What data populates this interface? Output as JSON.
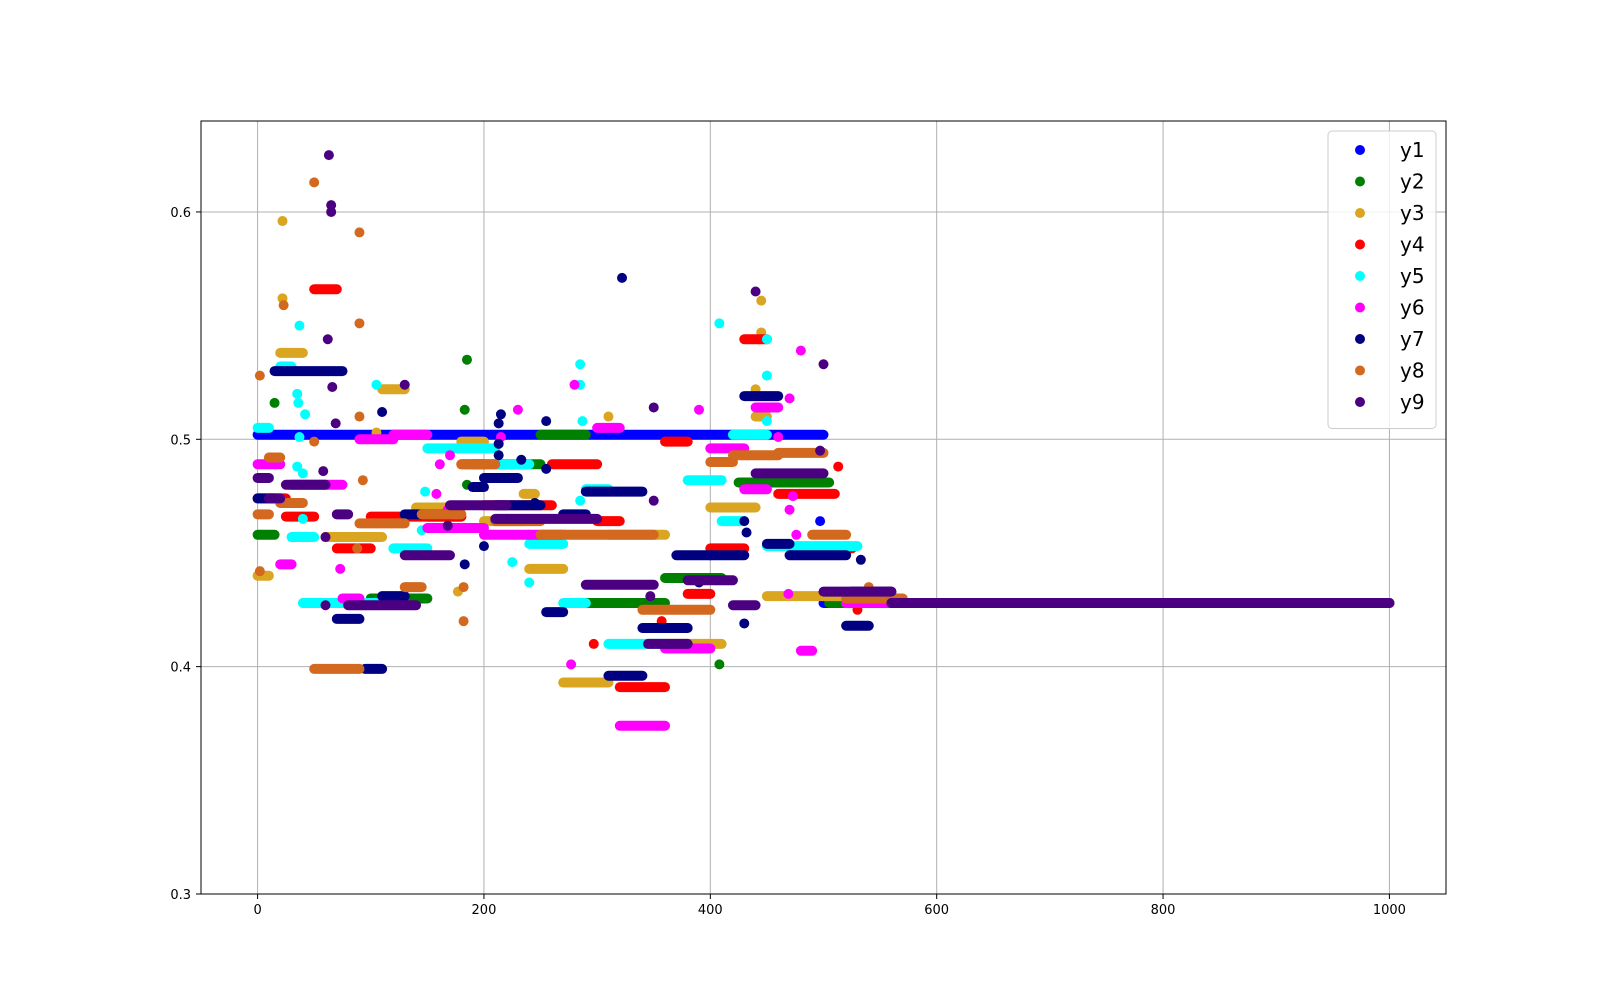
{
  "chart_data": {
    "type": "scatter",
    "title": "",
    "xlabel": "",
    "ylabel": "",
    "xlim": [
      -50,
      1050
    ],
    "ylim": [
      0.3,
      0.64
    ],
    "x_ticks": [
      0,
      200,
      400,
      600,
      800,
      1000
    ],
    "y_ticks": [
      0.3,
      0.4,
      0.5,
      0.6
    ],
    "x_tick_labels": [
      "0",
      "200",
      "400",
      "600",
      "800",
      "1000"
    ],
    "y_tick_labels": [
      "0.3",
      "0.4",
      "0.5",
      "0.6"
    ],
    "grid": true,
    "legend_position": "top-right",
    "series": [
      {
        "name": "y1",
        "color": "#0000ff",
        "runs": [
          [
            0,
            500,
            0.502
          ],
          [
            500,
            1000,
            0.428
          ]
        ],
        "points": [
          [
            497,
            0.464
          ]
        ]
      },
      {
        "name": "y2",
        "color": "#008000",
        "runs": [
          [
            0,
            15,
            0.458
          ],
          [
            100,
            150,
            0.43
          ],
          [
            150,
            180,
            0.466
          ],
          [
            190,
            250,
            0.489
          ],
          [
            250,
            290,
            0.502
          ],
          [
            290,
            360,
            0.428
          ],
          [
            360,
            410,
            0.439
          ],
          [
            425,
            505,
            0.481
          ],
          [
            505,
            1000,
            0.428
          ]
        ],
        "points": [
          [
            15,
            0.516
          ],
          [
            185,
            0.535
          ],
          [
            183,
            0.513
          ],
          [
            185,
            0.48
          ],
          [
            408,
            0.401
          ]
        ]
      },
      {
        "name": "y3",
        "color": "#daa520",
        "runs": [
          [
            0,
            10,
            0.44
          ],
          [
            20,
            40,
            0.538
          ],
          [
            60,
            110,
            0.457
          ],
          [
            110,
            130,
            0.522
          ],
          [
            140,
            180,
            0.47
          ],
          [
            180,
            200,
            0.499
          ],
          [
            200,
            235,
            0.464
          ],
          [
            235,
            245,
            0.476
          ],
          [
            240,
            270,
            0.443
          ],
          [
            270,
            310,
            0.393
          ],
          [
            310,
            360,
            0.458
          ],
          [
            360,
            410,
            0.41
          ],
          [
            400,
            440,
            0.47
          ],
          [
            440,
            450,
            0.51
          ],
          [
            450,
            520,
            0.431
          ],
          [
            520,
            1000,
            0.428
          ]
        ],
        "points": [
          [
            22,
            0.596
          ],
          [
            22,
            0.562
          ],
          [
            105,
            0.503
          ],
          [
            177,
            0.433
          ],
          [
            445,
            0.547
          ],
          [
            445,
            0.561
          ],
          [
            440,
            0.522
          ],
          [
            310,
            0.51
          ]
        ]
      },
      {
        "name": "y4",
        "color": "#ff0000",
        "runs": [
          [
            0,
            25,
            0.474
          ],
          [
            25,
            50,
            0.466
          ],
          [
            50,
            70,
            0.566
          ],
          [
            70,
            100,
            0.452
          ],
          [
            100,
            180,
            0.466
          ],
          [
            180,
            200,
            0.489
          ],
          [
            200,
            260,
            0.471
          ],
          [
            260,
            300,
            0.489
          ],
          [
            300,
            320,
            0.464
          ],
          [
            320,
            360,
            0.391
          ],
          [
            360,
            380,
            0.499
          ],
          [
            380,
            400,
            0.432
          ],
          [
            400,
            430,
            0.452
          ],
          [
            430,
            450,
            0.544
          ],
          [
            460,
            510,
            0.476
          ],
          [
            510,
            525,
            0.452
          ],
          [
            525,
            1000,
            0.428
          ]
        ],
        "points": [
          [
            297,
            0.41
          ],
          [
            357,
            0.42
          ],
          [
            513,
            0.488
          ],
          [
            530,
            0.425
          ]
        ]
      },
      {
        "name": "y5",
        "color": "#00ffff",
        "runs": [
          [
            0,
            10,
            0.505
          ],
          [
            20,
            30,
            0.532
          ],
          [
            30,
            50,
            0.457
          ],
          [
            40,
            120,
            0.428
          ],
          [
            120,
            150,
            0.452
          ],
          [
            150,
            210,
            0.496
          ],
          [
            210,
            240,
            0.489
          ],
          [
            240,
            270,
            0.454
          ],
          [
            270,
            290,
            0.428
          ],
          [
            290,
            310,
            0.478
          ],
          [
            310,
            360,
            0.41
          ],
          [
            380,
            410,
            0.482
          ],
          [
            410,
            430,
            0.464
          ],
          [
            420,
            450,
            0.502
          ],
          [
            450,
            530,
            0.453
          ],
          [
            530,
            1000,
            0.428
          ]
        ],
        "points": [
          [
            37,
            0.55
          ],
          [
            35,
            0.52
          ],
          [
            36,
            0.516
          ],
          [
            42,
            0.511
          ],
          [
            35,
            0.488
          ],
          [
            40,
            0.485
          ],
          [
            37,
            0.501
          ],
          [
            40,
            0.465
          ],
          [
            105,
            0.524
          ],
          [
            145,
            0.46
          ],
          [
            148,
            0.477
          ],
          [
            225,
            0.446
          ],
          [
            240,
            0.437
          ],
          [
            285,
            0.533
          ],
          [
            285,
            0.524
          ],
          [
            287,
            0.508
          ],
          [
            285,
            0.473
          ],
          [
            408,
            0.551
          ],
          [
            450,
            0.528
          ],
          [
            450,
            0.544
          ],
          [
            450,
            0.508
          ]
        ]
      },
      {
        "name": "y6",
        "color": "#ff00ff",
        "runs": [
          [
            0,
            20,
            0.489
          ],
          [
            20,
            30,
            0.445
          ],
          [
            30,
            75,
            0.48
          ],
          [
            75,
            90,
            0.43
          ],
          [
            90,
            120,
            0.5
          ],
          [
            120,
            150,
            0.502
          ],
          [
            150,
            200,
            0.461
          ],
          [
            200,
            240,
            0.458
          ],
          [
            240,
            270,
            0.458
          ],
          [
            300,
            320,
            0.505
          ],
          [
            320,
            360,
            0.374
          ],
          [
            360,
            400,
            0.408
          ],
          [
            400,
            430,
            0.496
          ],
          [
            430,
            450,
            0.478
          ],
          [
            440,
            460,
            0.514
          ],
          [
            480,
            490,
            0.407
          ],
          [
            520,
            1000,
            0.428
          ]
        ],
        "points": [
          [
            73,
            0.443
          ],
          [
            158,
            0.476
          ],
          [
            161,
            0.489
          ],
          [
            168,
            0.469
          ],
          [
            170,
            0.493
          ],
          [
            215,
            0.501
          ],
          [
            230,
            0.513
          ],
          [
            280,
            0.524
          ],
          [
            277,
            0.401
          ],
          [
            390,
            0.513
          ],
          [
            460,
            0.501
          ],
          [
            470,
            0.518
          ],
          [
            470,
            0.469
          ],
          [
            469,
            0.432
          ],
          [
            476,
            0.458
          ],
          [
            480,
            0.539
          ],
          [
            473,
            0.475
          ]
        ]
      },
      {
        "name": "y7",
        "color": "#000080",
        "runs": [
          [
            0,
            15,
            0.474
          ],
          [
            15,
            75,
            0.53
          ],
          [
            70,
            90,
            0.421
          ],
          [
            95,
            110,
            0.399
          ],
          [
            110,
            130,
            0.431
          ],
          [
            130,
            170,
            0.467
          ],
          [
            190,
            200,
            0.479
          ],
          [
            200,
            230,
            0.483
          ],
          [
            210,
            250,
            0.471
          ],
          [
            255,
            270,
            0.424
          ],
          [
            270,
            290,
            0.467
          ],
          [
            290,
            340,
            0.477
          ],
          [
            310,
            340,
            0.396
          ],
          [
            340,
            380,
            0.417
          ],
          [
            370,
            400,
            0.449
          ],
          [
            400,
            430,
            0.449
          ],
          [
            430,
            460,
            0.519
          ],
          [
            450,
            470,
            0.454
          ],
          [
            470,
            520,
            0.449
          ],
          [
            520,
            540,
            0.418
          ],
          [
            525,
            560,
            0.433
          ],
          [
            560,
            1000,
            0.428
          ]
        ],
        "points": [
          [
            110,
            0.512
          ],
          [
            183,
            0.445
          ],
          [
            200,
            0.453
          ],
          [
            213,
            0.493
          ],
          [
            213,
            0.498
          ],
          [
            213,
            0.507
          ],
          [
            215,
            0.511
          ],
          [
            233,
            0.491
          ],
          [
            245,
            0.472
          ],
          [
            255,
            0.487
          ],
          [
            255,
            0.508
          ],
          [
            322,
            0.571
          ],
          [
            390,
            0.437
          ],
          [
            430,
            0.419
          ],
          [
            432,
            0.459
          ],
          [
            430,
            0.464
          ],
          [
            533,
            0.447
          ]
        ]
      },
      {
        "name": "y8",
        "color": "#d2691e",
        "runs": [
          [
            0,
            10,
            0.467
          ],
          [
            10,
            20,
            0.492
          ],
          [
            20,
            40,
            0.472
          ],
          [
            50,
            90,
            0.399
          ],
          [
            90,
            130,
            0.463
          ],
          [
            130,
            145,
            0.435
          ],
          [
            145,
            180,
            0.467
          ],
          [
            180,
            210,
            0.489
          ],
          [
            210,
            250,
            0.464
          ],
          [
            250,
            350,
            0.458
          ],
          [
            340,
            400,
            0.425
          ],
          [
            400,
            420,
            0.49
          ],
          [
            420,
            460,
            0.493
          ],
          [
            460,
            500,
            0.494
          ],
          [
            490,
            520,
            0.458
          ],
          [
            520,
            570,
            0.43
          ],
          [
            570,
            1000,
            0.428
          ]
        ],
        "points": [
          [
            2,
            0.528
          ],
          [
            2,
            0.442
          ],
          [
            23,
            0.559
          ],
          [
            50,
            0.613
          ],
          [
            50,
            0.499
          ],
          [
            90,
            0.591
          ],
          [
            90,
            0.551
          ],
          [
            90,
            0.51
          ],
          [
            93,
            0.482
          ],
          [
            88,
            0.452
          ],
          [
            182,
            0.42
          ],
          [
            182,
            0.435
          ],
          [
            540,
            0.435
          ]
        ]
      },
      {
        "name": "y9",
        "color": "#4b0082",
        "runs": [
          [
            0,
            10,
            0.483
          ],
          [
            10,
            20,
            0.474
          ],
          [
            25,
            60,
            0.48
          ],
          [
            70,
            80,
            0.467
          ],
          [
            80,
            140,
            0.427
          ],
          [
            130,
            170,
            0.449
          ],
          [
            170,
            220,
            0.471
          ],
          [
            210,
            300,
            0.465
          ],
          [
            290,
            350,
            0.436
          ],
          [
            345,
            380,
            0.41
          ],
          [
            380,
            420,
            0.438
          ],
          [
            420,
            440,
            0.427
          ],
          [
            440,
            500,
            0.485
          ],
          [
            500,
            560,
            0.433
          ],
          [
            560,
            1000,
            0.428
          ]
        ],
        "points": [
          [
            63,
            0.625
          ],
          [
            65,
            0.603
          ],
          [
            65,
            0.6
          ],
          [
            62,
            0.544
          ],
          [
            66,
            0.523
          ],
          [
            69,
            0.507
          ],
          [
            58,
            0.486
          ],
          [
            60,
            0.457
          ],
          [
            60,
            0.427
          ],
          [
            130,
            0.524
          ],
          [
            168,
            0.462
          ],
          [
            220,
            0.465
          ],
          [
            350,
            0.514
          ],
          [
            350,
            0.473
          ],
          [
            347,
            0.431
          ],
          [
            440,
            0.565
          ],
          [
            500,
            0.533
          ],
          [
            497,
            0.495
          ]
        ]
      }
    ]
  }
}
